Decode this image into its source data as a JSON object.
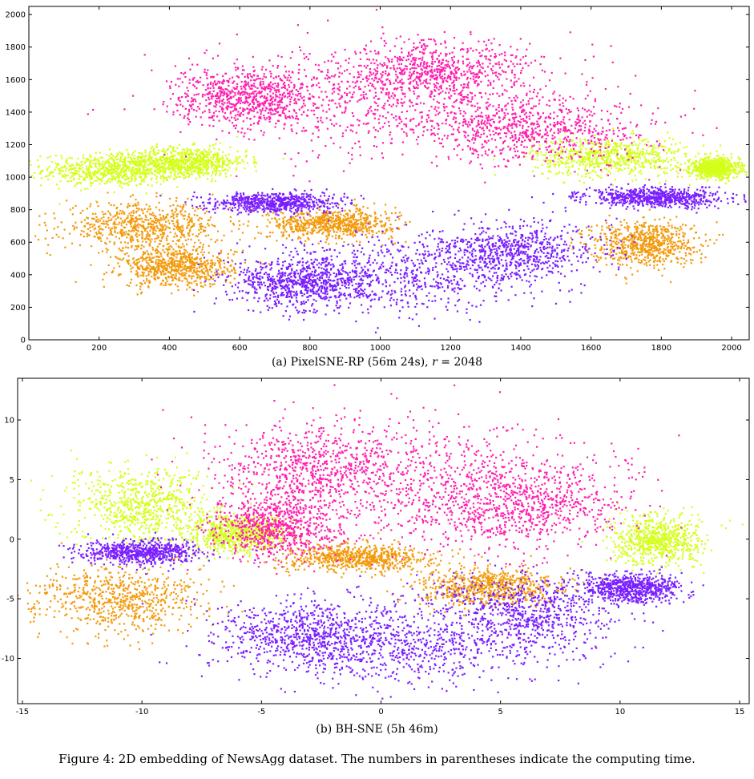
{
  "figure": {
    "caption": "Figure 4: 2D embedding of NewsAgg dataset. The numbers in parentheses indicate the computing time."
  },
  "cluster_colors": {
    "magenta": "#ff1fae",
    "lime": "#d4ff1a",
    "orange": "#f39a0c",
    "violet": "#7a1fff"
  },
  "chart_data": [
    {
      "type": "scatter",
      "caption": "(a) PixelSNE-RP (56m 24s), r = 2048",
      "caption_main": "(a) PixelSNE-RP (56m 24s), ",
      "caption_var": "r",
      "caption_rest": " = 2048",
      "xlim": [
        0,
        2050
      ],
      "ylim": [
        0,
        2050
      ],
      "xticks": [
        0,
        200,
        400,
        600,
        800,
        1000,
        1200,
        1400,
        1600,
        1800,
        2000
      ],
      "yticks": [
        0,
        200,
        400,
        600,
        800,
        1000,
        1200,
        1400,
        1600,
        1800,
        2000
      ],
      "grid": false,
      "clusters": [
        {
          "color": "magenta",
          "blobs": [
            [
              1000,
              1450,
              560,
              340
            ],
            [
              620,
              1500,
              200,
              170
            ],
            [
              1450,
              1300,
              330,
              200
            ],
            [
              1150,
              1650,
              280,
              200
            ]
          ]
        },
        {
          "color": "lime",
          "blobs": [
            [
              240,
              1050,
              200,
              100
            ],
            [
              450,
              1100,
              170,
              90
            ],
            [
              1650,
              1130,
              220,
              120
            ],
            [
              1950,
              1060,
              70,
              60
            ]
          ]
        },
        {
          "color": "orange",
          "blobs": [
            [
              320,
              700,
              220,
              140
            ],
            [
              420,
              450,
              160,
              120
            ],
            [
              860,
              720,
              180,
              90
            ],
            [
              1750,
              600,
              150,
              140
            ]
          ]
        },
        {
          "color": "violet",
          "blobs": [
            [
              1050,
              400,
              400,
              230
            ],
            [
              780,
              360,
              200,
              150
            ],
            [
              1380,
              550,
              240,
              170
            ],
            [
              1780,
              880,
              200,
              60
            ],
            [
              700,
              850,
              180,
              60
            ]
          ]
        }
      ]
    },
    {
      "type": "scatter",
      "caption": "(b) BH-SNE (5h 46m)",
      "xlim": [
        -15.2,
        15.4
      ],
      "ylim": [
        -13.8,
        13.5
      ],
      "xticks": [
        -15,
        -10,
        -5,
        0,
        5,
        10,
        15
      ],
      "yticks": [
        -10,
        -5,
        0,
        5,
        10
      ],
      "grid": false,
      "clusters": [
        {
          "color": "magenta",
          "blobs": [
            [
              2,
              5,
              7.5,
              5.5
            ],
            [
              -3,
              6,
              4,
              4
            ],
            [
              6,
              3,
              4,
              3.5
            ],
            [
              -4.5,
              1,
              2.5,
              2.5
            ]
          ]
        },
        {
          "color": "lime",
          "blobs": [
            [
              -10,
              3,
              3,
              3.2
            ],
            [
              11.5,
              0,
              1.8,
              2
            ],
            [
              -6,
              0.5,
              2,
              1.5
            ]
          ]
        },
        {
          "color": "orange",
          "blobs": [
            [
              -11,
              -5,
              3.6,
              3
            ],
            [
              4.5,
              -4,
              3,
              1.6
            ],
            [
              -1,
              -1.5,
              3,
              1.2
            ]
          ]
        },
        {
          "color": "violet",
          "blobs": [
            [
              1,
              -9,
              7,
              3.2
            ],
            [
              -3,
              -8,
              4,
              3
            ],
            [
              6,
              -6,
              4,
              3
            ],
            [
              10.5,
              -4,
              2,
              1.2
            ],
            [
              -10,
              -1,
              2.5,
              1
            ]
          ]
        }
      ]
    }
  ]
}
